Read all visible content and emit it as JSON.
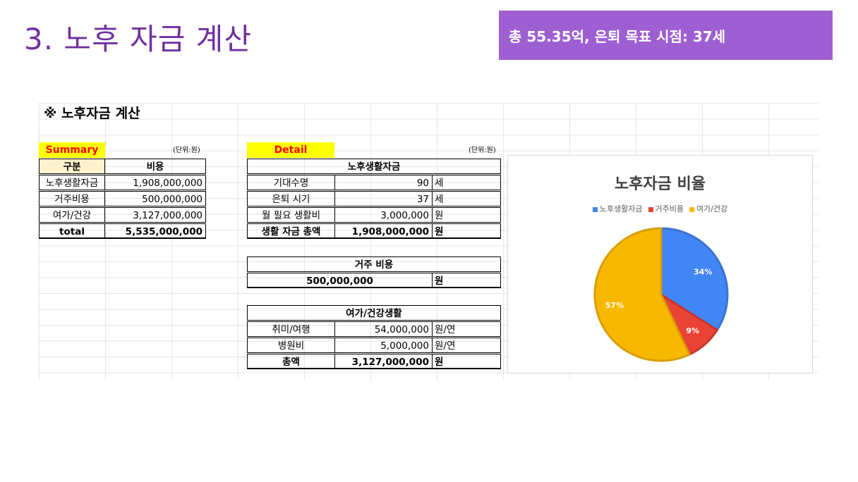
{
  "slide": {
    "title": "3. 노후 자금 계산",
    "banner": "총 55.35억, 은퇴 목표 시점: 37세"
  },
  "sheet": {
    "heading": "※ 노후자금 계산",
    "summary": {
      "label": "Summary",
      "unit": "(단위:원)",
      "headers": [
        "구분",
        "비용"
      ],
      "rows": [
        {
          "name": "노후생활자금",
          "value": "1,908,000,000"
        },
        {
          "name": "거주비용",
          "value": "500,000,000"
        },
        {
          "name": "여가/건강",
          "value": "3,127,000,000"
        }
      ],
      "total": {
        "name": "total",
        "value": "5,535,000,000"
      }
    },
    "detail": {
      "label": "Detail",
      "unit": "(단위:원)",
      "living": {
        "title": "노후생활자금",
        "rows": [
          {
            "name": "기대수명",
            "value": "90",
            "unit": "세"
          },
          {
            "name": "은퇴 시기",
            "value": "37",
            "unit": "세"
          },
          {
            "name": "월 필요 생활비",
            "value": "3,000,000",
            "unit": "원"
          }
        ],
        "total": {
          "name": "생활 자금 총액",
          "value": "1,908,000,000",
          "unit": "원"
        }
      },
      "housing": {
        "title": "거주 비용",
        "value": "500,000,000",
        "unit": "원"
      },
      "leisure": {
        "title": "여가/건강생활",
        "rows": [
          {
            "name": "취미/여행",
            "value": "54,000,000",
            "unit": "원/연"
          },
          {
            "name": "병원비",
            "value": "5,000,000",
            "unit": "원/연"
          }
        ],
        "total": {
          "name": "총액",
          "value": "3,127,000,000",
          "unit": "원"
        }
      }
    }
  },
  "chart_data": {
    "type": "pie",
    "title": "노후자금 비율",
    "categories": [
      "노후생활자금",
      "거주비용",
      "여가/건강"
    ],
    "values": [
      34,
      9,
      57
    ],
    "labels": [
      "34%",
      "9%",
      "57%"
    ],
    "colors": [
      "#4285f4",
      "#ea4335",
      "#f9b800"
    ],
    "legend": "top"
  }
}
